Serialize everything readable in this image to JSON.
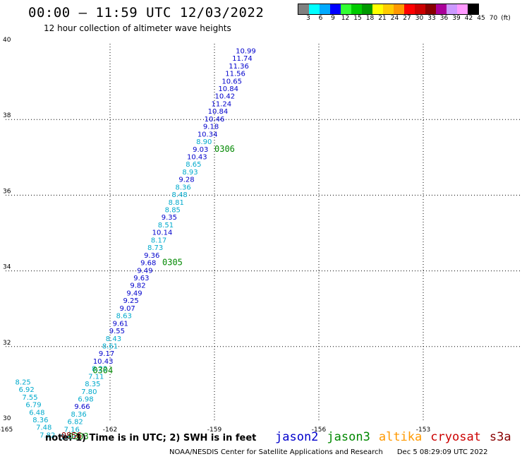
{
  "title": "00:00 – 11:59 UTC 12/03/2022",
  "subtitle": "12 hour collection of altimeter wave heights",
  "legend": {
    "colors": [
      "#808080",
      "#00ffff",
      "#00aaff",
      "#0000ff",
      "#33ff33",
      "#00cc00",
      "#009900",
      "#ffff00",
      "#ffcc00",
      "#ff9900",
      "#ff0000",
      "#cc0000",
      "#880000",
      "#aa0099",
      "#cc99ff",
      "#ff99ff",
      "#000000"
    ],
    "ticks": [
      "3",
      "6",
      "9",
      "12",
      "15",
      "18",
      "21",
      "24",
      "27",
      "30",
      "33",
      "36",
      "39",
      "42",
      "45",
      "70",
      "(ft)"
    ]
  },
  "note": "note: 1) Time is in UTC; 2) SWH is in feet",
  "satellites": [
    {
      "name": "jason2",
      "color": "#0000cc"
    },
    {
      "name": "jason3",
      "color": "#008800"
    },
    {
      "name": "altika",
      "color": "#ff9900"
    },
    {
      "name": "cryosat",
      "color": "#cc0000"
    },
    {
      "name": "s3a",
      "color": "#880000"
    }
  ],
  "footer": {
    "source": "NOAA/NESDIS Center for Satellite Applications and Research",
    "timestamp": "Dec  5 08:29:09 UTC 2022"
  },
  "chart_data": {
    "type": "scatter",
    "xlim": [
      -165,
      -150
    ],
    "ylim": [
      30,
      40
    ],
    "x_ticks": [
      "-165",
      "-162",
      "-159",
      "-156",
      "-153",
      "-15"
    ],
    "y_ticks": [
      "30",
      "32",
      "34",
      "36",
      "38",
      "40"
    ],
    "grid": true,
    "points": [
      {
        "lon": -158.1,
        "lat": 39.75,
        "value": "10.99",
        "color": "#0000cc"
      },
      {
        "lon": -158.2,
        "lat": 39.55,
        "value": "11.74",
        "color": "#0000cc"
      },
      {
        "lon": -158.3,
        "lat": 39.35,
        "value": "11.36",
        "color": "#0000cc"
      },
      {
        "lon": -158.4,
        "lat": 39.15,
        "value": "11.56",
        "color": "#0000cc"
      },
      {
        "lon": -158.5,
        "lat": 38.95,
        "value": "10.65",
        "color": "#0000cc"
      },
      {
        "lon": -158.6,
        "lat": 38.75,
        "value": "10.84",
        "color": "#0000cc"
      },
      {
        "lon": -158.7,
        "lat": 38.55,
        "value": "10.42",
        "color": "#0000cc"
      },
      {
        "lon": -158.8,
        "lat": 38.35,
        "value": "11.24",
        "color": "#0000cc"
      },
      {
        "lon": -158.9,
        "lat": 38.15,
        "value": "10.84",
        "color": "#0000cc"
      },
      {
        "lon": -159.0,
        "lat": 37.95,
        "value": "10.46",
        "color": "#0000cc"
      },
      {
        "lon": -159.1,
        "lat": 37.75,
        "value": "9.18",
        "color": "#0000cc"
      },
      {
        "lon": -159.2,
        "lat": 37.55,
        "value": "10.34",
        "color": "#0000cc"
      },
      {
        "lon": -159.3,
        "lat": 37.35,
        "value": "8.90",
        "color": "#00aacc"
      },
      {
        "lon": -159.4,
        "lat": 37.15,
        "value": "9.03",
        "color": "#0000cc"
      },
      {
        "lon": -159.5,
        "lat": 36.95,
        "value": "10.43",
        "color": "#0000cc"
      },
      {
        "lon": -159.6,
        "lat": 36.75,
        "value": "8.65",
        "color": "#00aacc"
      },
      {
        "lon": -159.7,
        "lat": 36.55,
        "value": "8.93",
        "color": "#00aacc"
      },
      {
        "lon": -159.8,
        "lat": 36.35,
        "value": "9.28",
        "color": "#0000cc"
      },
      {
        "lon": -159.9,
        "lat": 36.15,
        "value": "8.36",
        "color": "#00aacc"
      },
      {
        "lon": -160.0,
        "lat": 35.95,
        "value": "8.48",
        "color": "#00aacc"
      },
      {
        "lon": -160.1,
        "lat": 35.75,
        "value": "8.81",
        "color": "#00aacc"
      },
      {
        "lon": -160.2,
        "lat": 35.55,
        "value": "8.85",
        "color": "#00aacc"
      },
      {
        "lon": -160.3,
        "lat": 35.35,
        "value": "9.35",
        "color": "#0000cc"
      },
      {
        "lon": -160.4,
        "lat": 35.15,
        "value": "8.51",
        "color": "#00aacc"
      },
      {
        "lon": -160.5,
        "lat": 34.95,
        "value": "10.14",
        "color": "#0000cc"
      },
      {
        "lon": -160.6,
        "lat": 34.75,
        "value": "8.17",
        "color": "#00aacc"
      },
      {
        "lon": -160.7,
        "lat": 34.55,
        "value": "8.73",
        "color": "#00aacc"
      },
      {
        "lon": -160.8,
        "lat": 34.35,
        "value": "9.36",
        "color": "#0000cc"
      },
      {
        "lon": -160.9,
        "lat": 34.15,
        "value": "9.68",
        "color": "#0000cc"
      },
      {
        "lon": -161.0,
        "lat": 33.95,
        "value": "9.49",
        "color": "#0000cc"
      },
      {
        "lon": -161.1,
        "lat": 33.75,
        "value": "9.63",
        "color": "#0000cc"
      },
      {
        "lon": -161.2,
        "lat": 33.55,
        "value": "9.82",
        "color": "#0000cc"
      },
      {
        "lon": -161.3,
        "lat": 33.35,
        "value": "9.49",
        "color": "#0000cc"
      },
      {
        "lon": -161.4,
        "lat": 33.15,
        "value": "9.25",
        "color": "#0000cc"
      },
      {
        "lon": -161.5,
        "lat": 32.95,
        "value": "9.07",
        "color": "#0000cc"
      },
      {
        "lon": -161.6,
        "lat": 32.75,
        "value": "8.63",
        "color": "#00aacc"
      },
      {
        "lon": -161.7,
        "lat": 32.55,
        "value": "9.61",
        "color": "#0000cc"
      },
      {
        "lon": -161.8,
        "lat": 32.35,
        "value": "9.55",
        "color": "#0000cc"
      },
      {
        "lon": -161.9,
        "lat": 32.15,
        "value": "8.43",
        "color": "#00aacc"
      },
      {
        "lon": -162.0,
        "lat": 31.95,
        "value": "8.61",
        "color": "#00aacc"
      },
      {
        "lon": -162.1,
        "lat": 31.75,
        "value": "9.17",
        "color": "#0000cc"
      },
      {
        "lon": -162.2,
        "lat": 31.55,
        "value": "10.43",
        "color": "#0000cc"
      },
      {
        "lon": -162.3,
        "lat": 31.35,
        "value": "8.22",
        "color": "#00aacc"
      },
      {
        "lon": -162.4,
        "lat": 31.15,
        "value": "7.11",
        "color": "#00aacc"
      },
      {
        "lon": -162.5,
        "lat": 30.95,
        "value": "8.35",
        "color": "#00aacc"
      },
      {
        "lon": -162.6,
        "lat": 30.75,
        "value": "7.80",
        "color": "#00aacc"
      },
      {
        "lon": -162.7,
        "lat": 30.55,
        "value": "6.98",
        "color": "#00aacc"
      },
      {
        "lon": -162.8,
        "lat": 30.35,
        "value": "9.66",
        "color": "#0000cc"
      },
      {
        "lon": -162.9,
        "lat": 30.15,
        "value": "8.36",
        "color": "#00aacc"
      },
      {
        "lon": -163.0,
        "lat": 29.95,
        "value": "6.82",
        "color": "#00aacc"
      },
      {
        "lon": -163.1,
        "lat": 29.75,
        "value": "7.16",
        "color": "#00aacc"
      },
      {
        "lon": -163.2,
        "lat": 29.55,
        "value": "7.63",
        "color": "#00aacc"
      },
      {
        "lon": -164.5,
        "lat": 31.0,
        "value": "8.25",
        "color": "#00aacc"
      },
      {
        "lon": -164.4,
        "lat": 30.8,
        "value": "6.92",
        "color": "#00aacc"
      },
      {
        "lon": -164.3,
        "lat": 30.6,
        "value": "7.55",
        "color": "#00aacc"
      },
      {
        "lon": -164.2,
        "lat": 30.4,
        "value": "6.79",
        "color": "#00aacc"
      },
      {
        "lon": -164.1,
        "lat": 30.2,
        "value": "6.48",
        "color": "#00aacc"
      },
      {
        "lon": -164.0,
        "lat": 30.0,
        "value": "8.36",
        "color": "#00aacc"
      },
      {
        "lon": -163.9,
        "lat": 29.8,
        "value": "7.48",
        "color": "#00aacc"
      },
      {
        "lon": -163.8,
        "lat": 29.6,
        "value": "7.82",
        "color": "#00aacc"
      }
    ],
    "time_labels": [
      {
        "lon": -159.0,
        "lat": 37.15,
        "value": "0306",
        "color": "#008800"
      },
      {
        "lon": -160.5,
        "lat": 34.15,
        "value": "0305",
        "color": "#008800"
      },
      {
        "lon": -162.5,
        "lat": 31.3,
        "value": "0304",
        "color": "#008800"
      },
      {
        "lon": -163.2,
        "lat": 29.55,
        "value": "0303",
        "color": "#008800"
      },
      {
        "lon": -163.4,
        "lat": 29.57,
        "value": "0856",
        "color": "#880000"
      }
    ]
  }
}
